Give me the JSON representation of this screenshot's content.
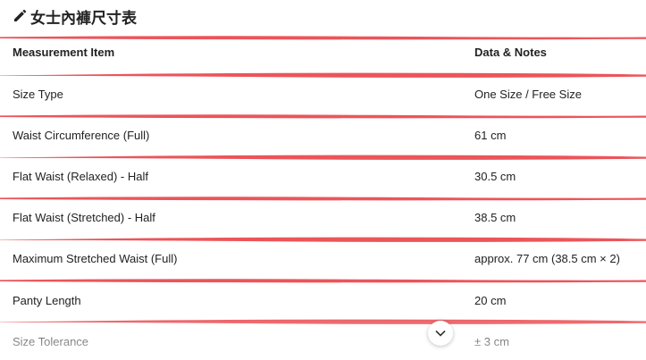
{
  "header": {
    "title": "女士內褲尺寸表"
  },
  "table": {
    "columns": [
      "Measurement Item",
      "Data & Notes"
    ],
    "rows": [
      [
        "Size Type",
        "One Size / Free Size"
      ],
      [
        "Waist Circumference (Full)",
        "61 cm"
      ],
      [
        "Flat Waist (Relaxed) - Half",
        "30.5 cm"
      ],
      [
        "Flat Waist (Stretched) - Half",
        "38.5 cm"
      ],
      [
        "Maximum Stretched Waist (Full)",
        "approx. 77 cm (38.5 cm × 2)"
      ],
      [
        "Panty Length",
        "20 cm"
      ],
      [
        "Size Tolerance",
        "± 3 cm"
      ]
    ]
  }
}
